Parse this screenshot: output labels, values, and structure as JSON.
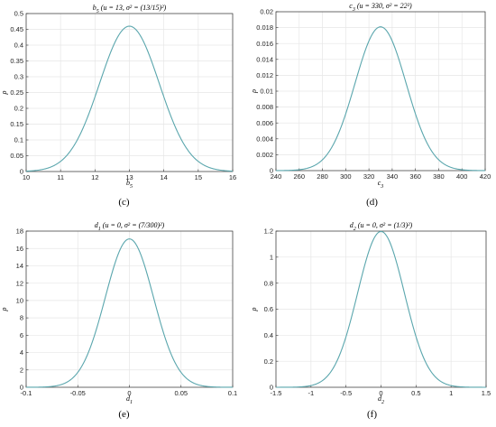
{
  "chart_data": [
    {
      "type": "line",
      "title": "b5 (u = 13, σ² = (13/15)²)",
      "xlabel": "b5",
      "ylabel": "ρ",
      "caption": "(c)",
      "mean": 13,
      "sigma": 0.8667,
      "xlim": [
        10,
        16
      ],
      "ylim": [
        0,
        0.5
      ],
      "xticks": [
        "10",
        "11",
        "12",
        "13",
        "14",
        "15",
        "16"
      ],
      "yticks": [
        "0",
        "0.05",
        "0.1",
        "0.15",
        "0.2",
        "0.25",
        "0.3",
        "0.35",
        "0.4",
        "0.45",
        "0.5"
      ],
      "peak": 0.46,
      "grid": true,
      "color": "#5aa6ad"
    },
    {
      "type": "line",
      "title": "c3 (u = 330, σ² = 22²)",
      "xlabel": "c3",
      "ylabel": "ρ",
      "caption": "(d)",
      "mean": 330,
      "sigma": 22,
      "xlim": [
        240,
        420
      ],
      "ylim": [
        0,
        0.02
      ],
      "xticks": [
        "240",
        "260",
        "280",
        "300",
        "320",
        "340",
        "360",
        "380",
        "400",
        "420"
      ],
      "yticks": [
        "0",
        "0.002",
        "0.004",
        "0.006",
        "0.008",
        "0.01",
        "0.012",
        "0.014",
        "0.016",
        "0.018",
        "0.02"
      ],
      "peak": 0.0181,
      "grid": true,
      "color": "#5aa6ad"
    },
    {
      "type": "line",
      "title": "d1 (u = 0, σ² = (7/300)²)",
      "xlabel": "d1",
      "ylabel": "ρ",
      "caption": "(e)",
      "mean": 0,
      "sigma": 0.02333,
      "xlim": [
        -0.1,
        0.1
      ],
      "ylim": [
        0,
        18
      ],
      "xticks": [
        "-0.1",
        "-0.05",
        "0",
        "0.05",
        "0.1"
      ],
      "yticks": [
        "0",
        "2",
        "4",
        "6",
        "8",
        "10",
        "12",
        "14",
        "16",
        "18"
      ],
      "peak": 17.1,
      "grid": true,
      "color": "#5aa6ad"
    },
    {
      "type": "line",
      "title": "d2 (u = 0, σ² = (1/3)²)",
      "xlabel": "d2",
      "ylabel": "ρ",
      "caption": "(f)",
      "mean": 0,
      "sigma": 0.3333,
      "xlim": [
        -1.5,
        1.5
      ],
      "ylim": [
        0,
        1.2
      ],
      "xticks": [
        "-1.5",
        "-1",
        "-0.5",
        "0",
        "0.5",
        "1",
        "1.5"
      ],
      "yticks": [
        "0",
        "0.2",
        "0.4",
        "0.6",
        "0.8",
        "1",
        "1.2"
      ],
      "peak": 1.197,
      "grid": true,
      "color": "#5aa6ad"
    }
  ]
}
